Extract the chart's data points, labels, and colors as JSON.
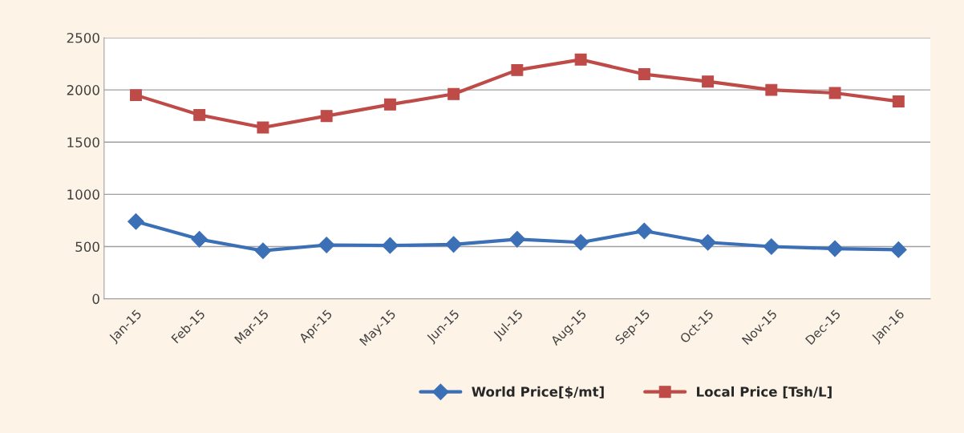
{
  "chart_data": {
    "type": "line",
    "categories": [
      "Jan-15",
      "Feb-15",
      "Mar-15",
      "Apr-15",
      "May-15",
      "Jun-15",
      "Jul-15",
      "Aug-15",
      "Sep-15",
      "Oct-15",
      "Nov-15",
      "Dec-15",
      "Jan-16"
    ],
    "series": [
      {
        "name": "World Price[$/mt]",
        "color": "#3b6fb6",
        "marker": "diamond",
        "values": [
          740,
          570,
          460,
          515,
          510,
          520,
          570,
          540,
          650,
          540,
          500,
          480,
          470
        ]
      },
      {
        "name": "Local Price [Tsh/L]",
        "color": "#be4b48",
        "marker": "square",
        "values": [
          1950,
          1760,
          1640,
          1750,
          1860,
          1960,
          2190,
          2290,
          2150,
          2080,
          2000,
          1970,
          1890
        ]
      }
    ],
    "ylim": [
      0,
      2500
    ],
    "yticks": [
      0,
      500,
      1000,
      1500,
      2000,
      2500
    ],
    "grid": "y",
    "legend": "bottom",
    "line_style": "solid"
  }
}
